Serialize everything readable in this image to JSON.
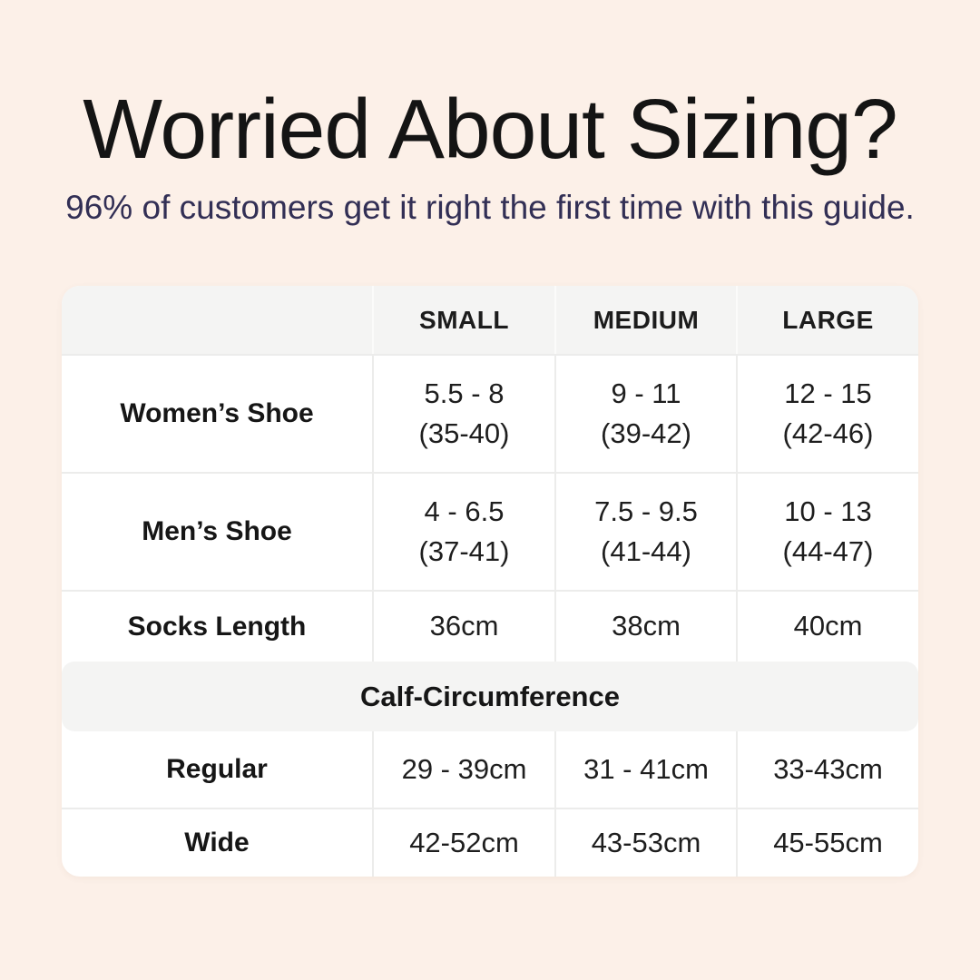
{
  "colors": {
    "background": "#fcf0e8",
    "card": "#ffffff",
    "band_gray": "#f4f4f3",
    "divider": "#ececeb",
    "title_text": "#141414",
    "subtitle_text": "#322f55",
    "table_text": "#1e1e1e"
  },
  "chart_data": {
    "type": "table",
    "title": "Worried About Sizing?",
    "subtitle": "96% of customers get it right the first time with this guide.",
    "columns": [
      "",
      "SMALL",
      "MEDIUM",
      "LARGE"
    ],
    "rows": [
      {
        "label": "Women’s Shoe",
        "cells": [
          [
            "5.5 - 8",
            "(35-40)"
          ],
          [
            "9 - 11",
            "(39-42)"
          ],
          [
            "12 - 15",
            "(42-46)"
          ]
        ]
      },
      {
        "label": "Men’s Shoe",
        "cells": [
          [
            "4 - 6.5",
            "(37-41)"
          ],
          [
            "7.5 - 9.5",
            "(41-44)"
          ],
          [
            "10 - 13",
            "(44-47)"
          ]
        ]
      },
      {
        "label": "Socks Length",
        "cells": [
          [
            "36cm"
          ],
          [
            "38cm"
          ],
          [
            "40cm"
          ]
        ]
      }
    ],
    "section_header": "Calf-Circumference",
    "section_rows": [
      {
        "label": "Regular",
        "cells": [
          [
            "29 - 39cm"
          ],
          [
            "31 - 41cm"
          ],
          [
            "33-43cm"
          ]
        ]
      },
      {
        "label": "Wide",
        "cells": [
          [
            "42-52cm"
          ],
          [
            "43-53cm"
          ],
          [
            "45-55cm"
          ]
        ]
      }
    ]
  }
}
